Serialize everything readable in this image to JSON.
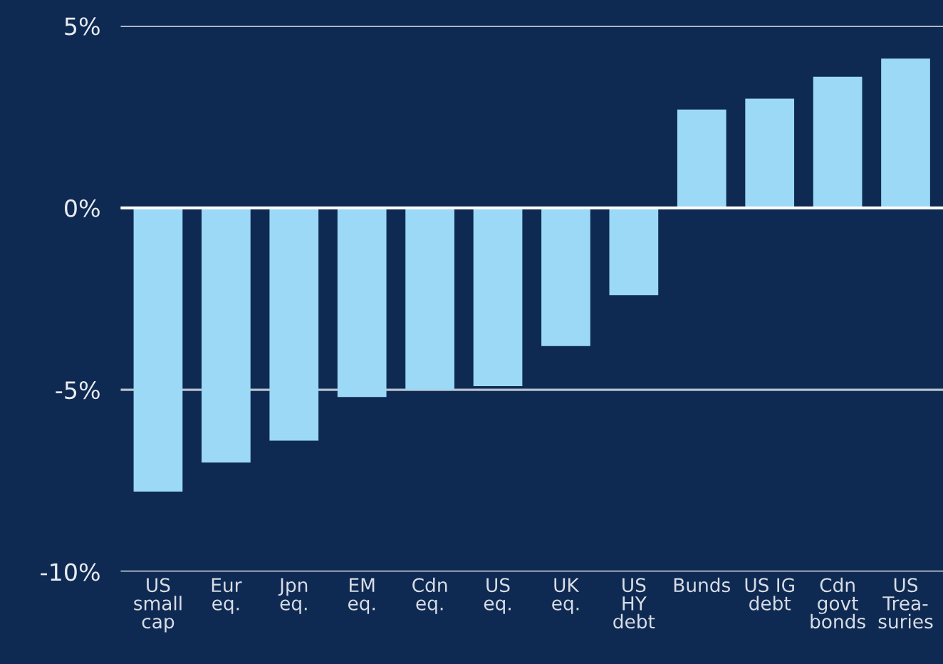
{
  "chart_data": {
    "type": "bar",
    "categories": [
      "US\nsmall\ncap",
      "Eur\neq.",
      "Jpn\neq.",
      "EM\neq.",
      "Cdn\neq.",
      "US\neq.",
      "UK\neq.",
      "US\nHY\ndebt",
      "Bunds",
      "US IG\ndebt",
      "Cdn\ngovt\nbonds",
      "US\nTrea-\nsuries"
    ],
    "values": [
      -7.8,
      -7.0,
      -6.4,
      -5.2,
      -5.0,
      -4.9,
      -3.8,
      -2.4,
      2.7,
      3.0,
      3.6,
      4.1
    ],
    "color": "#9bd9f7",
    "ylim": [
      -10,
      5
    ],
    "yticks": [
      {
        "value": -10,
        "label": "-10%"
      },
      {
        "value": -5,
        "label": "-5%"
      },
      {
        "value": 0,
        "label": "0%"
      },
      {
        "value": 5,
        "label": "5%"
      }
    ],
    "grid": "y",
    "legend": false
  }
}
